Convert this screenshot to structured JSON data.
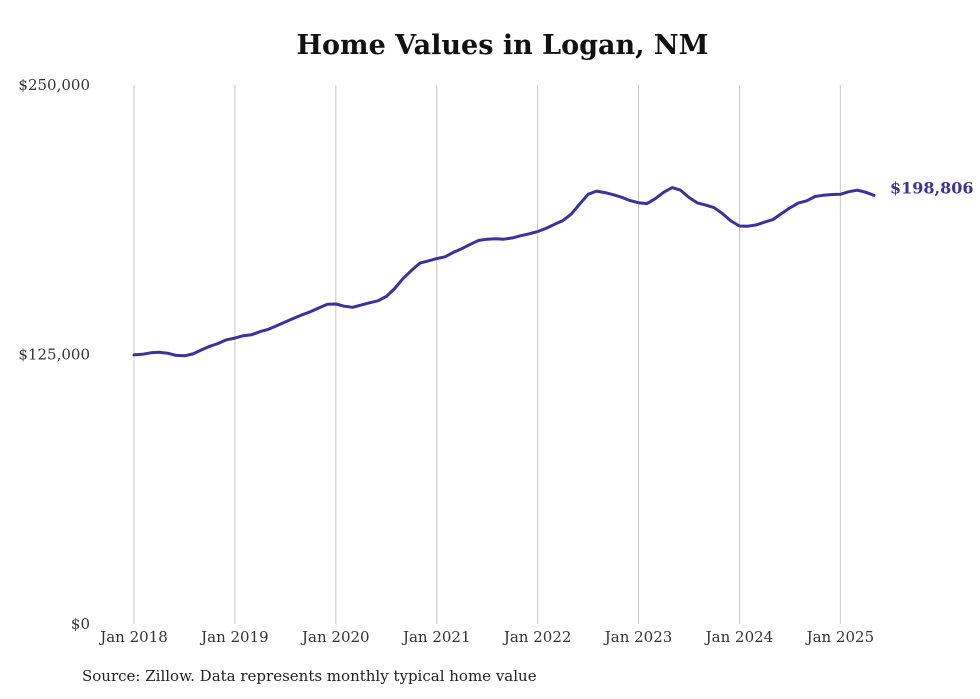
{
  "chart_data": {
    "type": "line",
    "title": "Home Values in Logan, NM",
    "xlabel": "",
    "ylabel": "",
    "ylim": [
      0,
      250000
    ],
    "xlim": [
      "2018-01",
      "2025-05"
    ],
    "y_ticks": [
      {
        "value": 0,
        "label": "$0"
      },
      {
        "value": 125000,
        "label": "$125,000"
      },
      {
        "value": 250000,
        "label": "$250,000"
      }
    ],
    "x_ticks": [
      {
        "value": "2018-01",
        "label": "Jan 2018"
      },
      {
        "value": "2019-01",
        "label": "Jan 2019"
      },
      {
        "value": "2020-01",
        "label": "Jan 2020"
      },
      {
        "value": "2021-01",
        "label": "Jan 2021"
      },
      {
        "value": "2022-01",
        "label": "Jan 2022"
      },
      {
        "value": "2023-01",
        "label": "Jan 2023"
      },
      {
        "value": "2024-01",
        "label": "Jan 2024"
      },
      {
        "value": "2025-01",
        "label": "Jan 2025"
      }
    ],
    "grid": "vertical",
    "line_color": "#3b3399",
    "grid_color": "#c8c8c8",
    "end_label": "$198,806",
    "series": [
      {
        "points": [
          [
            "2018-01",
            124800
          ],
          [
            "2018-02",
            125100
          ],
          [
            "2018-03",
            125800
          ],
          [
            "2018-04",
            126000
          ],
          [
            "2018-05",
            125600
          ],
          [
            "2018-06",
            124600
          ],
          [
            "2018-07",
            124400
          ],
          [
            "2018-08",
            125300
          ],
          [
            "2018-09",
            127100
          ],
          [
            "2018-10",
            128800
          ],
          [
            "2018-11",
            130100
          ],
          [
            "2018-12",
            131800
          ],
          [
            "2019-01",
            132600
          ],
          [
            "2019-02",
            133700
          ],
          [
            "2019-03",
            134200
          ],
          [
            "2019-04",
            135600
          ],
          [
            "2019-05",
            136700
          ],
          [
            "2019-06",
            138400
          ],
          [
            "2019-07",
            140100
          ],
          [
            "2019-08",
            141800
          ],
          [
            "2019-09",
            143400
          ],
          [
            "2019-10",
            144900
          ],
          [
            "2019-11",
            146600
          ],
          [
            "2019-12",
            148300
          ],
          [
            "2020-01",
            148400
          ],
          [
            "2020-02",
            147400
          ],
          [
            "2020-03",
            146900
          ],
          [
            "2020-04",
            147900
          ],
          [
            "2020-05",
            149000
          ],
          [
            "2020-06",
            149900
          ],
          [
            "2020-07",
            151900
          ],
          [
            "2020-08",
            155600
          ],
          [
            "2020-09",
            160300
          ],
          [
            "2020-10",
            164000
          ],
          [
            "2020-11",
            167400
          ],
          [
            "2020-12",
            168400
          ],
          [
            "2021-01",
            169500
          ],
          [
            "2021-02",
            170300
          ],
          [
            "2021-03",
            172400
          ],
          [
            "2021-04",
            174100
          ],
          [
            "2021-05",
            176100
          ],
          [
            "2021-06",
            177900
          ],
          [
            "2021-07",
            178500
          ],
          [
            "2021-08",
            178700
          ],
          [
            "2021-09",
            178500
          ],
          [
            "2021-10",
            179100
          ],
          [
            "2021-11",
            180100
          ],
          [
            "2021-12",
            181000
          ],
          [
            "2022-01",
            182000
          ],
          [
            "2022-02",
            183500
          ],
          [
            "2022-03",
            185400
          ],
          [
            "2022-04",
            187100
          ],
          [
            "2022-05",
            190100
          ],
          [
            "2022-06",
            194800
          ],
          [
            "2022-07",
            199300
          ],
          [
            "2022-08",
            200800
          ],
          [
            "2022-09",
            200100
          ],
          [
            "2022-10",
            199100
          ],
          [
            "2022-11",
            197900
          ],
          [
            "2022-12",
            196400
          ],
          [
            "2023-01",
            195400
          ],
          [
            "2023-02",
            195000
          ],
          [
            "2023-03",
            197300
          ],
          [
            "2023-04",
            200300
          ],
          [
            "2023-05",
            202400
          ],
          [
            "2023-06",
            201200
          ],
          [
            "2023-07",
            197800
          ],
          [
            "2023-08",
            195300
          ],
          [
            "2023-09",
            194300
          ],
          [
            "2023-10",
            193100
          ],
          [
            "2023-11",
            190300
          ],
          [
            "2023-12",
            186900
          ],
          [
            "2024-01",
            184600
          ],
          [
            "2024-02",
            184500
          ],
          [
            "2024-03",
            185100
          ],
          [
            "2024-04",
            186400
          ],
          [
            "2024-05",
            187600
          ],
          [
            "2024-06",
            190400
          ],
          [
            "2024-07",
            193000
          ],
          [
            "2024-08",
            195200
          ],
          [
            "2024-09",
            196300
          ],
          [
            "2024-10",
            198300
          ],
          [
            "2024-11",
            198900
          ],
          [
            "2024-12",
            199200
          ],
          [
            "2025-01",
            199300
          ],
          [
            "2025-02",
            200500
          ],
          [
            "2025-03",
            201200
          ],
          [
            "2025-04",
            200300
          ],
          [
            "2025-05",
            198806
          ]
        ]
      }
    ]
  },
  "source_note": "Source: Zillow. Data represents monthly typical home value"
}
